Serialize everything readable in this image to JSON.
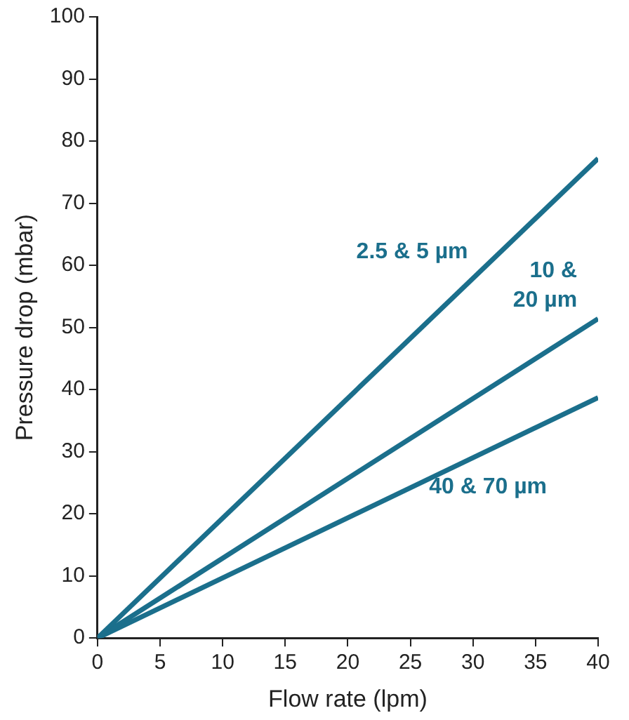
{
  "chart_data": {
    "type": "line",
    "xlabel": "Flow rate (lpm)",
    "ylabel": "Pressure drop (mbar)",
    "x": [
      0,
      40
    ],
    "series": [
      {
        "name": "2.5 & 5 µm",
        "color": "#1b6f8c",
        "values": [
          0,
          77.2
        ]
      },
      {
        "name": "10 & 20 µm",
        "color": "#1b6f8c",
        "values": [
          0,
          51.4
        ]
      },
      {
        "name": "40 & 70 µm",
        "color": "#1b6f8c",
        "values": [
          0,
          38.7
        ]
      }
    ],
    "xlim": [
      0,
      40
    ],
    "xticks": [
      0,
      5,
      10,
      15,
      20,
      25,
      30,
      35,
      40
    ],
    "ylim": [
      0,
      100
    ],
    "yticks": [
      0,
      10,
      20,
      30,
      40,
      50,
      60,
      70,
      80,
      90,
      100
    ],
    "legend": false,
    "marker": "none",
    "line_style": "solid"
  }
}
